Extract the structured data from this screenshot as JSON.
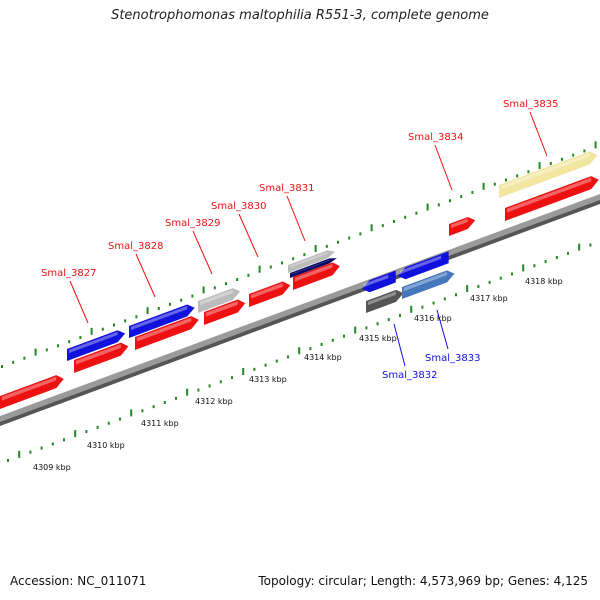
{
  "title": "Stenotrophomonas maltophilia R551-3, complete genome",
  "footer": {
    "accession": "Accession: NC_011071",
    "summary": "Topology: circular; Length: 4,573,969 bp; Genes: 4,125"
  },
  "colors": {
    "forward_gene": "#ee1111",
    "reverse_gene": "#1111dd",
    "pseudo_gray": "#bbbbbb",
    "dark_navy": "#0a0a66",
    "steel_blue": "#4477bb",
    "dark_gray": "#555555",
    "pale_yellow": "#f2e6a0",
    "tick_green": "#228822",
    "backbone": "#888888"
  },
  "kbp_ticks": [
    "4309 kbp",
    "4310 kbp",
    "4311 kbp",
    "4312 kbp",
    "4313 kbp",
    "4314 kbp",
    "4315 kbp",
    "4316 kbp",
    "4317 kbp",
    "4318 kbp"
  ],
  "gene_labels_forward": [
    "Smal_3827",
    "Smal_3828",
    "Smal_3829",
    "Smal_3830",
    "Smal_3831",
    "Smal_3834",
    "Smal_3835"
  ],
  "gene_labels_reverse": [
    "Smal_3832",
    "Smal_3833"
  ]
}
